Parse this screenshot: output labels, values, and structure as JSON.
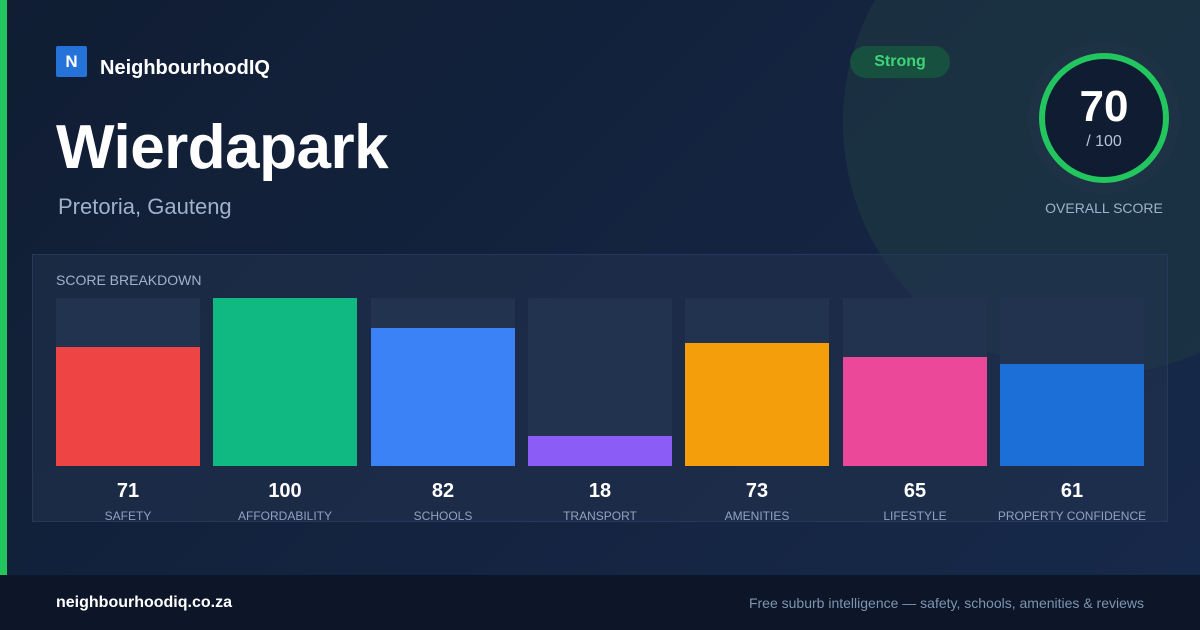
{
  "brand": {
    "logo_letter": "N",
    "name": "NeighbourhoodIQ"
  },
  "suburb": {
    "name": "Wierdapark",
    "location": "Pretoria, Gauteng"
  },
  "rating": {
    "label": "Strong",
    "color": "#22c55e"
  },
  "overall": {
    "score": "70",
    "max_label": "/ 100",
    "fraction": 0.7,
    "caption": "OVERALL SCORE"
  },
  "breakdown": {
    "title": "SCORE BREAKDOWN",
    "max": 100,
    "items": [
      {
        "name": "SAFETY",
        "value": 71,
        "color": "#ef4444"
      },
      {
        "name": "AFFORDABILITY",
        "value": 100,
        "color": "#10b981"
      },
      {
        "name": "SCHOOLS",
        "value": 82,
        "color": "#3b82f6"
      },
      {
        "name": "TRANSPORT",
        "value": 18,
        "color": "#8b5cf6"
      },
      {
        "name": "AMENITIES",
        "value": 73,
        "color": "#f59e0b"
      },
      {
        "name": "LIFESTYLE",
        "value": 65,
        "color": "#ec4899"
      },
      {
        "name": "PROPERTY CONFIDENCE",
        "value": 61,
        "color": "#1d6fd8"
      }
    ]
  },
  "footer": {
    "domain": "neighbourhoodiq.co.za",
    "tagline": "Free suburb intelligence — safety, schools, amenities & reviews"
  }
}
